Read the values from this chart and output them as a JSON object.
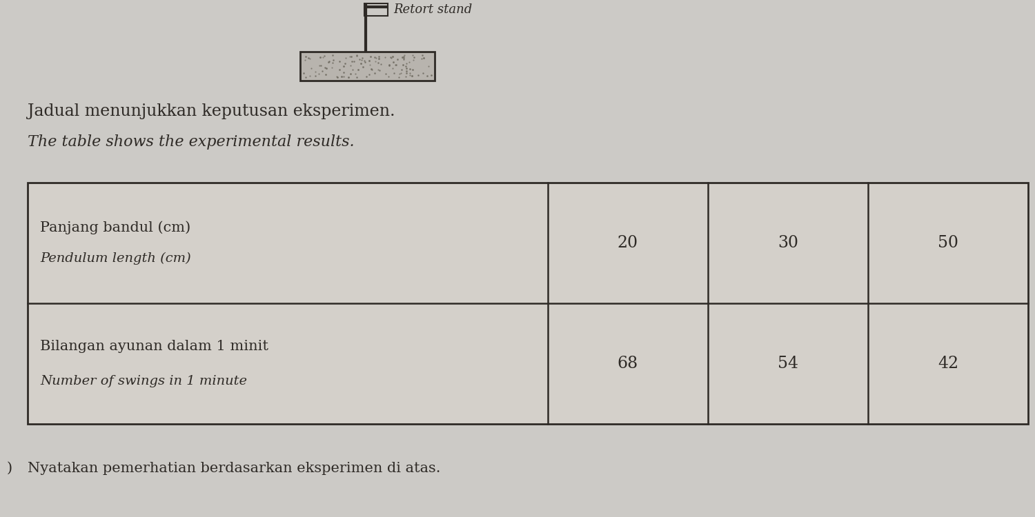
{
  "bg_color": "#cccac6",
  "text_color": "#2e2a26",
  "title_line1": "Jadual menunjukkan keputusan eksperimen.",
  "title_line2": "The table shows the experimental results.",
  "row1_label_line1": "Panjang bandul (cm)",
  "row1_label_line2": "Pendulum length (cm)",
  "row1_values": [
    "20",
    "30",
    "50"
  ],
  "row2_label_line1": "Bilangan ayunan dalam 1 minit",
  "row2_label_line2": "Number of swings in 1 minute",
  "row2_values": [
    "68",
    "54",
    "42"
  ],
  "bottom_text_display": "Nyatakan pemerhatian berdasarkan eksperimen di atas.",
  "retort_label": "Retort stand",
  "table_cell_bg": "#d8d4d0"
}
